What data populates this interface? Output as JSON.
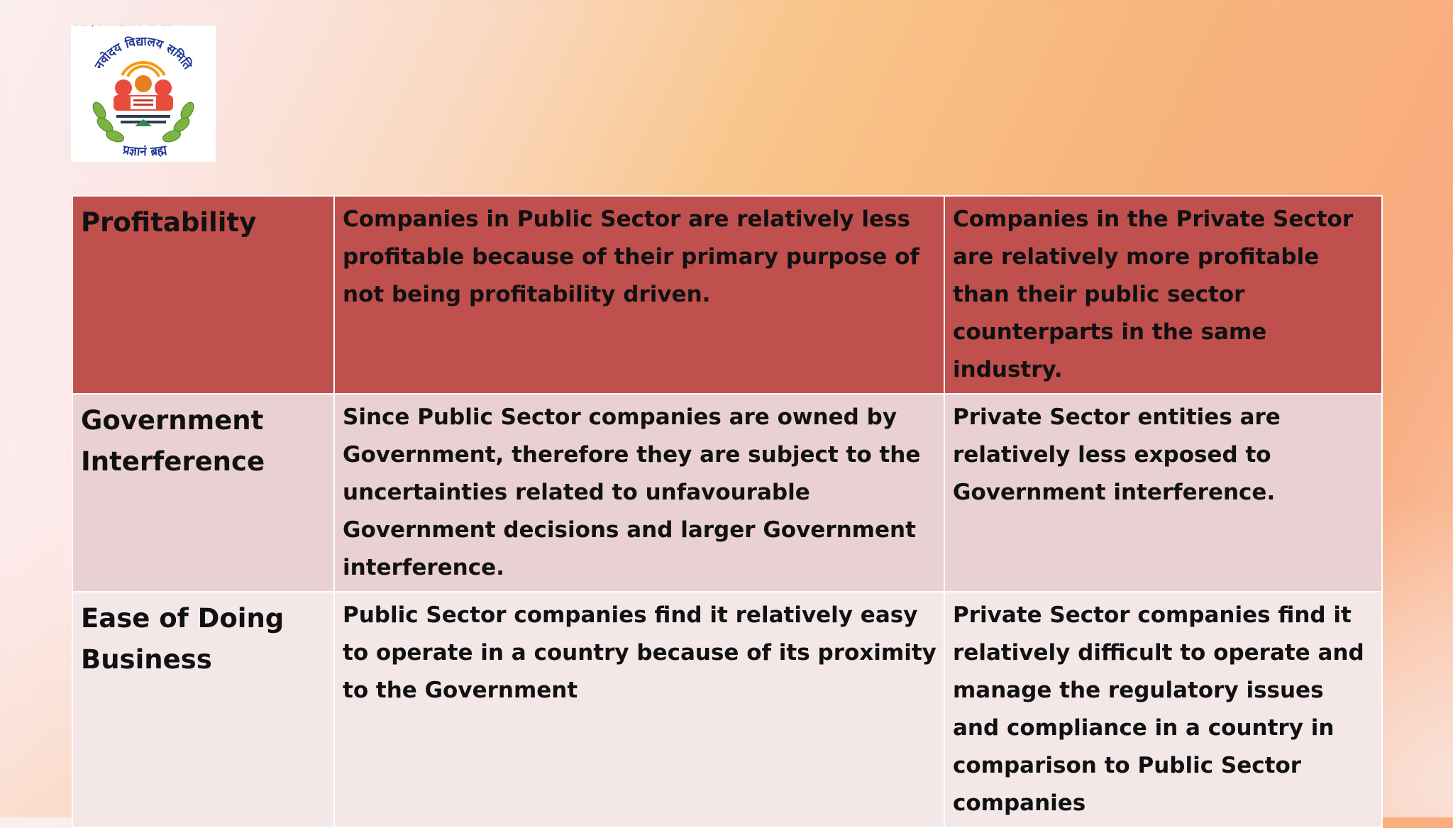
{
  "logo": {
    "icon": "navodaya-vidyalaya-samiti-emblem",
    "top_text": "नवोदय विद्यालय समिति",
    "bottom_text": "प्रज्ञानं ब्रह्म"
  },
  "table": {
    "rows": [
      {
        "label": "Profitability",
        "public": "Companies in Public Sector are relatively less profitable because of their primary purpose of not being profitability driven.",
        "private": "Companies in the Private Sector are relatively more profitable than their public sector counterparts in the same industry."
      },
      {
        "label": "Government Interference",
        "public": "Since Public Sector companies are owned by Government, therefore they are subject to the uncertainties related to unfavourable Government decisions and larger Government interference.",
        "private": "Private Sector entities are relatively less exposed to Government interference."
      },
      {
        "label": "Ease of Doing Business",
        "public": "Public Sector companies find it relatively easy to operate in a country because of its proximity to the Government",
        "private": "Private Sector companies find it relatively difficult to operate and manage the regulatory issues and compliance in a country in comparison to Public Sector companies"
      }
    ]
  },
  "colors": {
    "row_1_fill": "#c0504d",
    "row_2_fill": "#e9d0d3",
    "row_3_fill": "#f3e7e8"
  }
}
